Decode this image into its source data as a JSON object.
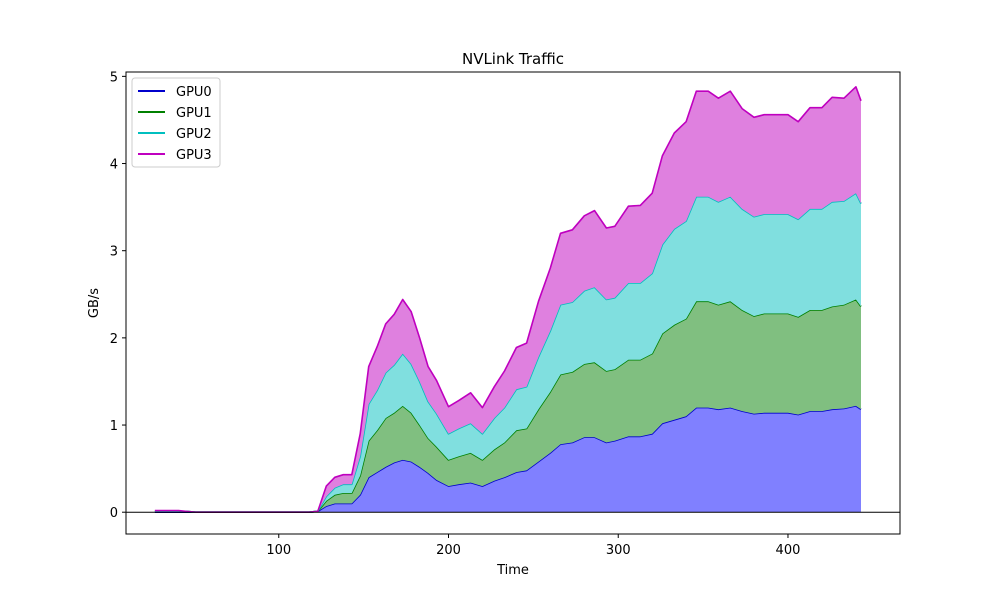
{
  "chart_data": {
    "type": "area",
    "stacked": true,
    "title": "NVLink Traffic",
    "xlabel": "Time",
    "ylabel": "GB/s",
    "xlim": [
      10,
      466
    ],
    "ylim": [
      -0.25,
      5.05
    ],
    "xticks": [
      100,
      200,
      300,
      400
    ],
    "yticks": [
      0,
      1,
      2,
      3,
      4,
      5
    ],
    "grid": false,
    "zero_line": true,
    "legend_position": "top-left",
    "x": [
      27,
      33,
      37,
      41,
      45,
      51,
      60,
      70,
      80,
      90,
      100,
      110,
      118,
      123,
      128,
      133,
      138,
      143,
      148,
      153,
      158,
      163,
      168,
      173,
      178,
      183,
      188,
      193,
      200,
      206,
      213,
      220,
      227,
      233,
      240,
      246,
      253,
      260,
      266,
      273,
      280,
      286,
      293,
      298,
      306,
      313,
      320,
      326,
      333,
      340,
      346,
      353,
      359,
      366,
      373,
      380,
      386,
      393,
      400,
      406,
      413,
      420,
      426,
      433,
      440,
      443
    ],
    "series": [
      {
        "name": "GPU0",
        "color": "#0000cc",
        "fill": "#8080ff",
        "values": [
          0.0,
          0.0,
          0.0,
          0.0,
          0.0,
          0.0,
          0.0,
          0.0,
          0.0,
          0.0,
          0.0,
          0.0,
          0.0,
          0.01,
          0.07,
          0.1,
          0.1,
          0.1,
          0.2,
          0.4,
          0.46,
          0.52,
          0.57,
          0.6,
          0.58,
          0.52,
          0.45,
          0.37,
          0.3,
          0.32,
          0.34,
          0.3,
          0.36,
          0.4,
          0.46,
          0.48,
          0.58,
          0.68,
          0.78,
          0.8,
          0.86,
          0.86,
          0.8,
          0.82,
          0.87,
          0.87,
          0.9,
          1.02,
          1.06,
          1.1,
          1.2,
          1.2,
          1.18,
          1.2,
          1.16,
          1.13,
          1.14,
          1.14,
          1.14,
          1.12,
          1.16,
          1.16,
          1.18,
          1.19,
          1.22,
          1.18
        ]
      },
      {
        "name": "GPU1",
        "color": "#008000",
        "fill": "#80bf80",
        "values": [
          0.01,
          0.01,
          0.01,
          0.01,
          0.01,
          0.0,
          0.0,
          0.0,
          0.0,
          0.0,
          0.0,
          0.0,
          0.0,
          0.0,
          0.06,
          0.1,
          0.12,
          0.12,
          0.22,
          0.42,
          0.48,
          0.56,
          0.57,
          0.62,
          0.56,
          0.48,
          0.4,
          0.38,
          0.3,
          0.32,
          0.34,
          0.3,
          0.36,
          0.4,
          0.48,
          0.48,
          0.6,
          0.7,
          0.8,
          0.81,
          0.84,
          0.86,
          0.82,
          0.82,
          0.88,
          0.88,
          0.92,
          1.03,
          1.09,
          1.12,
          1.22,
          1.22,
          1.2,
          1.22,
          1.16,
          1.12,
          1.14,
          1.14,
          1.14,
          1.12,
          1.16,
          1.16,
          1.18,
          1.19,
          1.22,
          1.18
        ]
      },
      {
        "name": "GPU2",
        "color": "#00bfbf",
        "fill": "#80dfdf",
        "values": [
          0.0,
          0.0,
          0.0,
          0.0,
          0.0,
          0.0,
          0.0,
          0.0,
          0.0,
          0.0,
          0.0,
          0.0,
          0.0,
          0.0,
          0.05,
          0.08,
          0.1,
          0.1,
          0.22,
          0.42,
          0.46,
          0.52,
          0.55,
          0.6,
          0.56,
          0.5,
          0.42,
          0.38,
          0.3,
          0.32,
          0.34,
          0.3,
          0.36,
          0.4,
          0.47,
          0.48,
          0.6,
          0.7,
          0.8,
          0.8,
          0.84,
          0.86,
          0.82,
          0.82,
          0.88,
          0.88,
          0.92,
          1.02,
          1.1,
          1.12,
          1.2,
          1.2,
          1.18,
          1.2,
          1.16,
          1.14,
          1.14,
          1.14,
          1.14,
          1.12,
          1.16,
          1.16,
          1.2,
          1.19,
          1.22,
          1.18
        ]
      },
      {
        "name": "GPU3",
        "color": "#bf00bf",
        "fill": "#df80df",
        "values": [
          0.01,
          0.01,
          0.01,
          0.01,
          0.0,
          0.0,
          0.0,
          0.0,
          0.0,
          0.0,
          0.0,
          0.0,
          0.0,
          0.0,
          0.12,
          0.12,
          0.11,
          0.11,
          0.26,
          0.43,
          0.5,
          0.56,
          0.58,
          0.62,
          0.6,
          0.5,
          0.4,
          0.38,
          0.31,
          0.32,
          0.35,
          0.3,
          0.36,
          0.42,
          0.48,
          0.5,
          0.64,
          0.72,
          0.82,
          0.83,
          0.86,
          0.88,
          0.82,
          0.82,
          0.88,
          0.89,
          0.92,
          1.02,
          1.1,
          1.14,
          1.21,
          1.21,
          1.19,
          1.21,
          1.15,
          1.14,
          1.14,
          1.14,
          1.14,
          1.12,
          1.16,
          1.16,
          1.2,
          1.18,
          1.22,
          1.18
        ]
      }
    ]
  }
}
